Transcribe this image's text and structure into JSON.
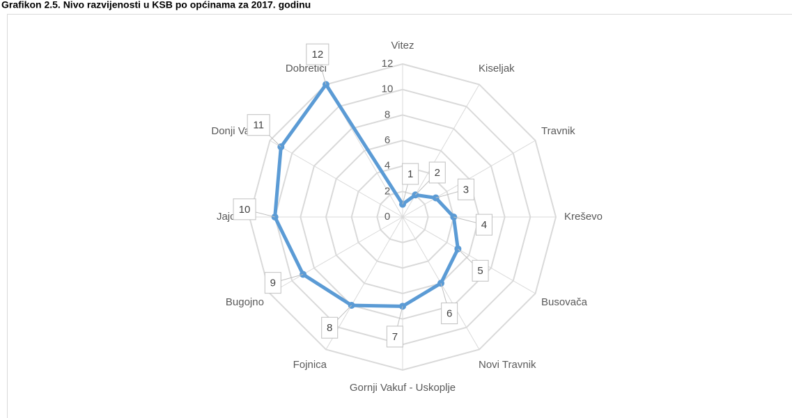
{
  "chart_data": {
    "type": "radar",
    "title": "Grafikon 2.5. Nivo razvijenosti u KSB po općinama za 2017. godinu",
    "categories": [
      "Vitez",
      "Kiseljak",
      "Travnik",
      "Kreševo",
      "Busovača",
      "Novi Travnik",
      "Gornji Vakuf - Uskoplje",
      "Fojnica",
      "Bugojno",
      "Jajce",
      "Donji Vakuf",
      "Dobretići"
    ],
    "values": [
      1,
      2,
      3,
      4,
      5,
      6,
      7,
      8,
      9,
      10,
      11,
      12
    ],
    "color": "#5b9bd5",
    "ylim": [
      0,
      12
    ],
    "yticks": [
      0,
      2,
      4,
      6,
      8,
      10,
      12
    ],
    "grid": true
  }
}
